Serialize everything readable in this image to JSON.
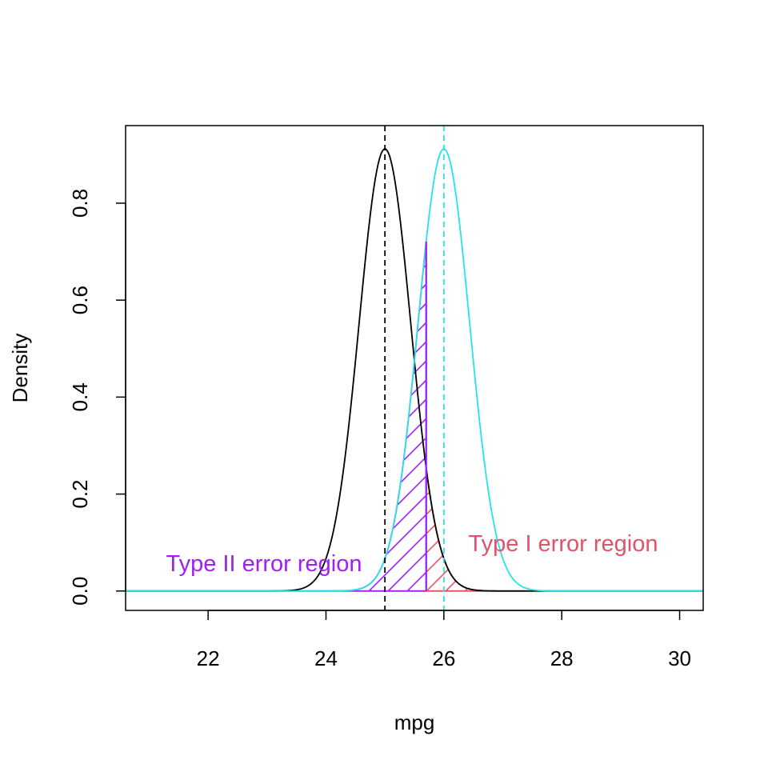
{
  "chart_data": {
    "type": "line",
    "title": "",
    "xlabel": "mpg",
    "ylabel": "Density",
    "xlim": [
      20.6,
      30.4
    ],
    "ylim": [
      -0.04,
      0.96
    ],
    "x_ticks": [
      22,
      24,
      26,
      28,
      30
    ],
    "x_tick_labels": [
      "22",
      "24",
      "26",
      "28",
      "30"
    ],
    "y_ticks": [
      0.0,
      0.2,
      0.4,
      0.6,
      0.8
    ],
    "y_tick_labels": [
      "0.0",
      "0.2",
      "0.4",
      "0.6",
      "0.8"
    ],
    "grid": false,
    "legend": "none",
    "series": [
      {
        "distribution": "normal",
        "mean": 25,
        "sd": 0.4375,
        "color": "#000000"
      },
      {
        "distribution": "normal",
        "mean": 26,
        "sd": 0.4375,
        "color": "#28E2E5"
      }
    ],
    "reference_lines": [
      {
        "x": 25,
        "style": "dashed",
        "color": "#000000"
      },
      {
        "x": 26,
        "style": "dashed",
        "color": "#28E2E5"
      }
    ],
    "critical_value": 25.7,
    "regions": [
      {
        "label": "Type II error region",
        "from": 20.6,
        "to": 25.7,
        "under_mean": 26,
        "color": "#A020F0",
        "fill": "hatched"
      },
      {
        "label": "Type I error region",
        "from": 25.7,
        "to": 30.4,
        "under_mean": 25,
        "color": "#DF536B",
        "fill": "hatched"
      }
    ]
  }
}
